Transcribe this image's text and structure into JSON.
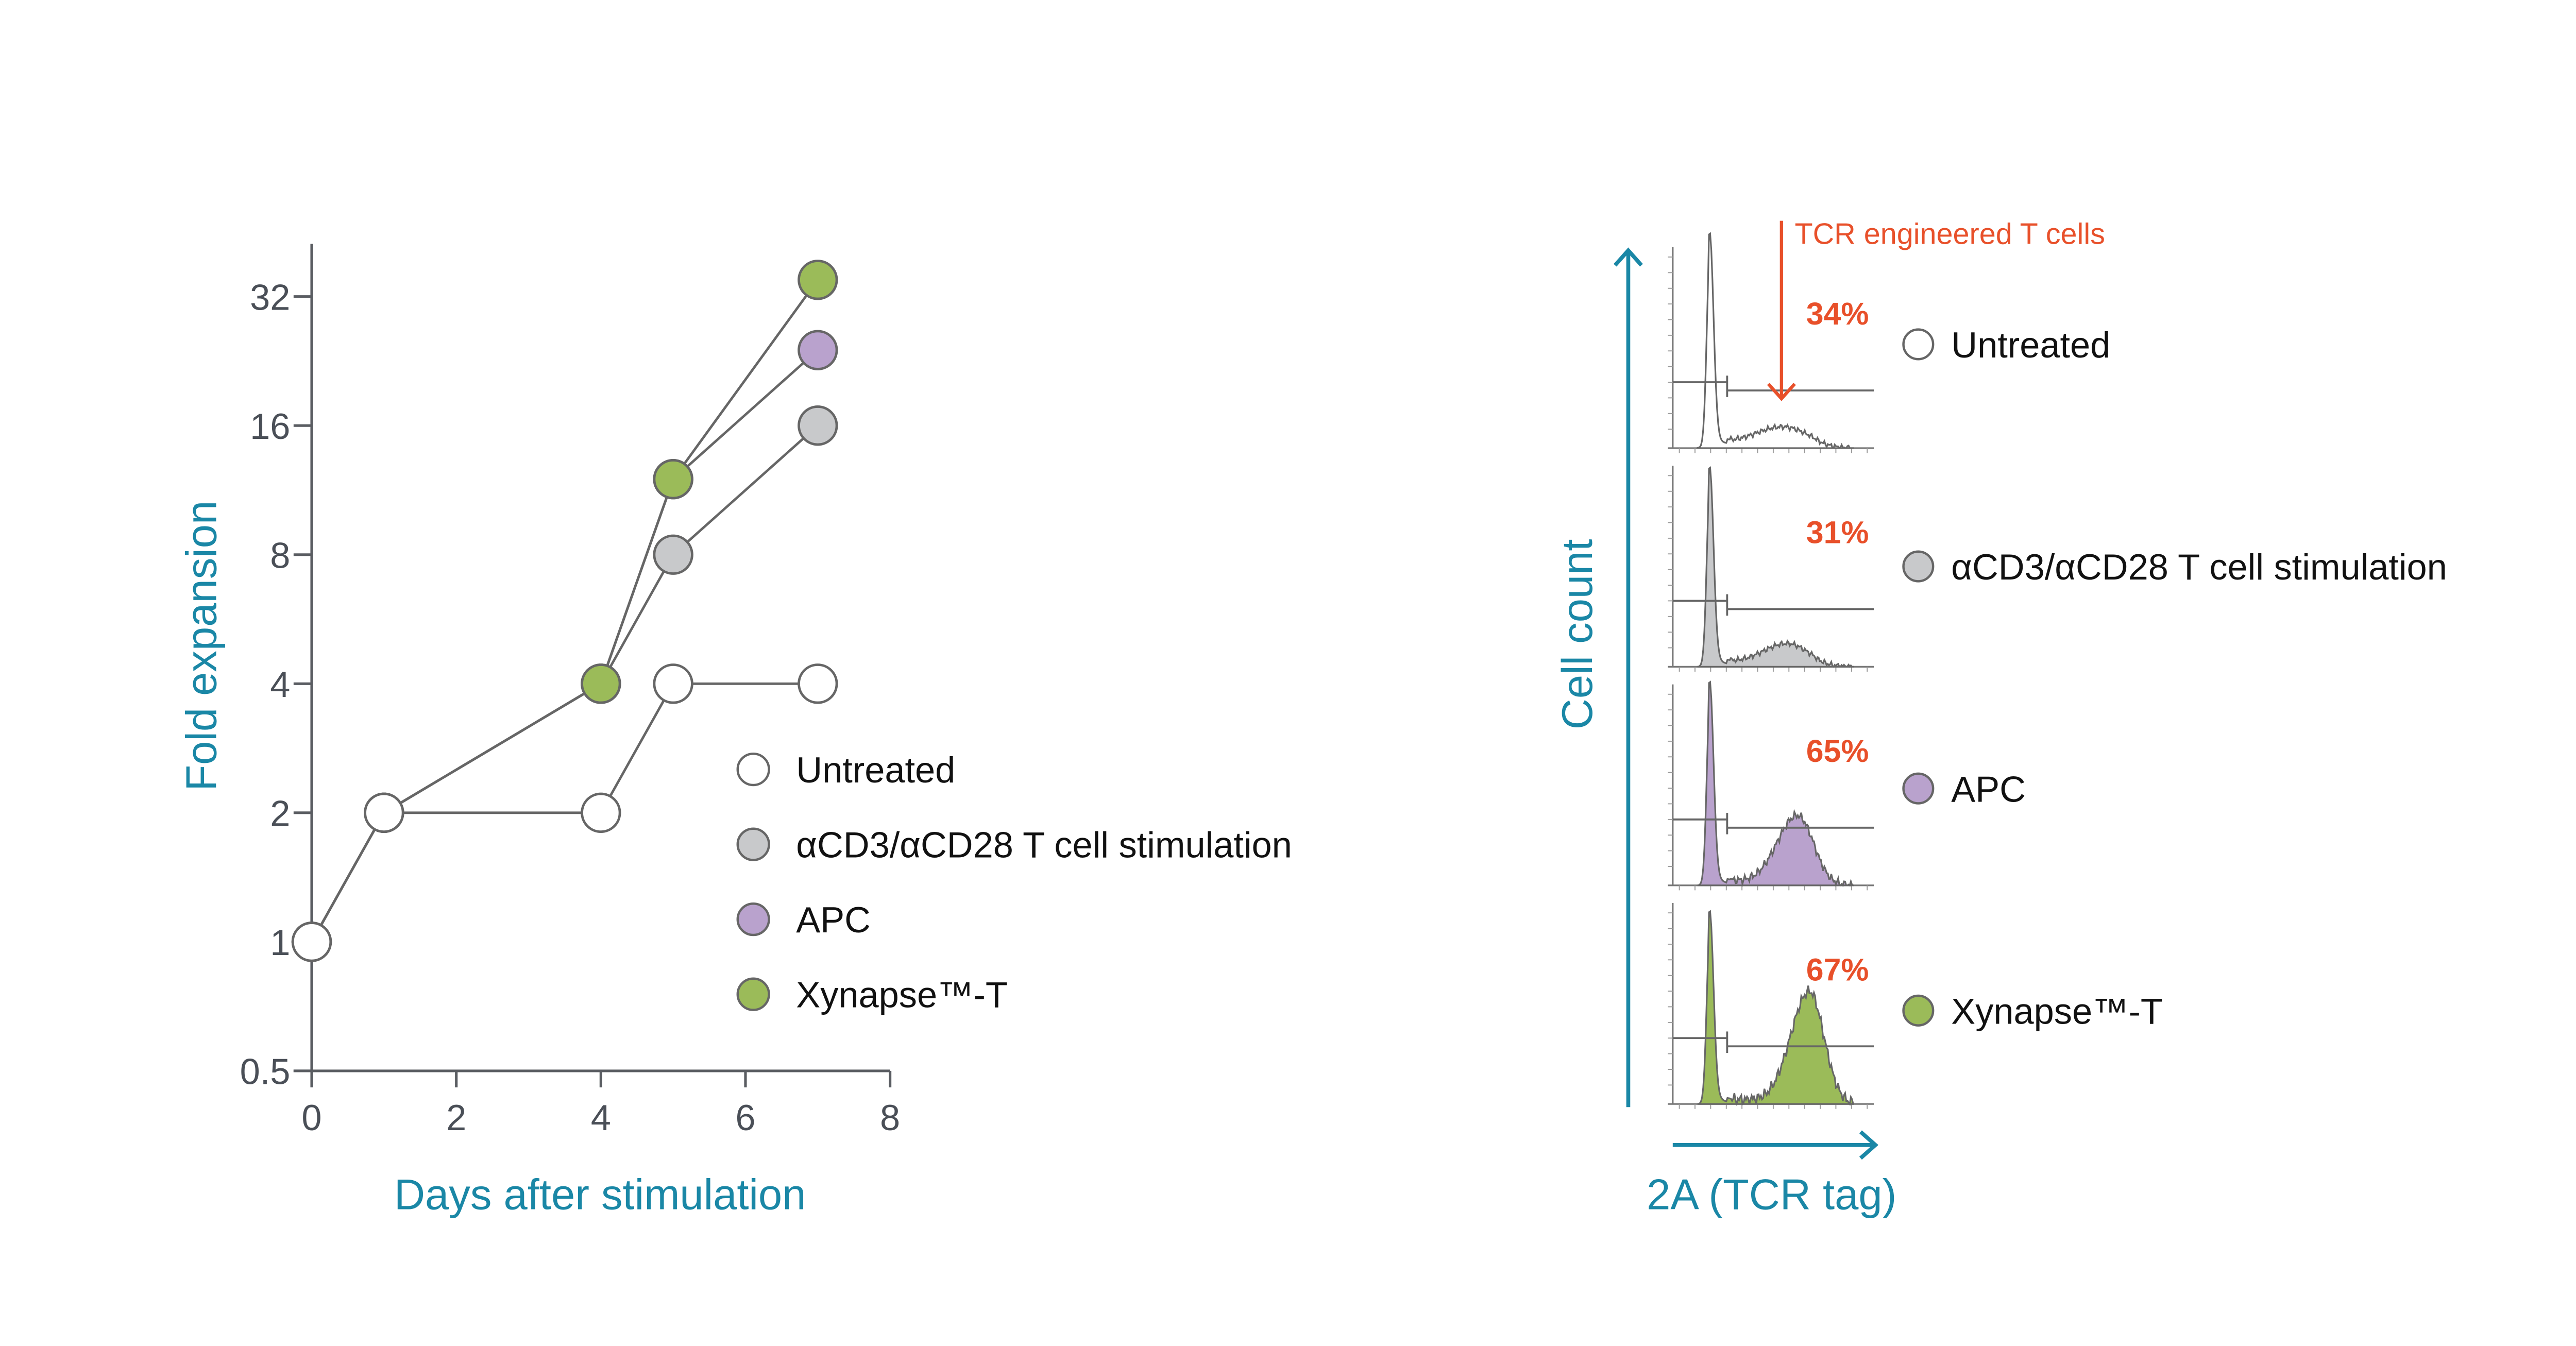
{
  "colors": {
    "teal": "#1a87a6",
    "red": "#e8502a",
    "axis": "#5a5d62",
    "line": "#666666"
  },
  "chart_data": [
    {
      "type": "line",
      "title": "",
      "xlabel": "Days after stimulation",
      "ylabel": "Fold expansion",
      "xlim": [
        0,
        8
      ],
      "ylim": [
        0.5,
        32
      ],
      "yscale": "log2",
      "xticks": [
        "0",
        "2",
        "4",
        "6",
        "8"
      ],
      "yticks": [
        "0.5",
        "1",
        "2",
        "4",
        "8",
        "16",
        "32"
      ],
      "legend_position": "center-right",
      "series": [
        {
          "name": "αCD3/αCD28 T cell stimulation",
          "color": "#c8c9cb",
          "x": [
            0,
            1,
            4,
            5,
            7
          ],
          "y": [
            1,
            2,
            4,
            8,
            16
          ]
        },
        {
          "name": "APC",
          "color": "#b9a2cd",
          "x": [
            0,
            1,
            4,
            5,
            7
          ],
          "y": [
            1,
            2,
            4,
            12,
            24
          ]
        },
        {
          "name": "Xynapse™-T",
          "color": "#9bbb59",
          "x": [
            0,
            1,
            4,
            5,
            7
          ],
          "y": [
            1,
            2,
            4,
            12,
            35
          ]
        },
        {
          "name": "Untreated",
          "color": "#ffffff",
          "x": [
            0,
            1,
            4,
            5,
            7
          ],
          "y": [
            1,
            2,
            2,
            4,
            4
          ]
        }
      ],
      "legend": [
        "Untreated",
        "αCD3/αCD28 T cell stimulation",
        "APC",
        "Xynapse™-T"
      ]
    },
    {
      "type": "area",
      "xlabel": "2A (TCR tag)",
      "ylabel": "Cell count",
      "annotation": "TCR engineered T cells",
      "panels": [
        {
          "name": "Untreated",
          "percent": "34%",
          "color": "#ffffff",
          "neg_peak": 1.0,
          "pos_peak": 0.09,
          "pos_center": 0.55,
          "pos_width": 0.2
        },
        {
          "name": "αCD3/αCD28 T cell stimulation",
          "percent": "31%",
          "color": "#c8c9cb",
          "neg_peak": 0.93,
          "pos_peak": 0.1,
          "pos_center": 0.57,
          "pos_width": 0.17
        },
        {
          "name": "APC",
          "percent": "65%",
          "color": "#b9a2cd",
          "neg_peak": 0.95,
          "pos_peak": 0.34,
          "pos_center": 0.62,
          "pos_width": 0.14
        },
        {
          "name": "Xynapse™-T",
          "percent": "67%",
          "color": "#9bbb59",
          "neg_peak": 0.9,
          "pos_peak": 0.56,
          "pos_center": 0.68,
          "pos_width": 0.13
        }
      ]
    }
  ]
}
